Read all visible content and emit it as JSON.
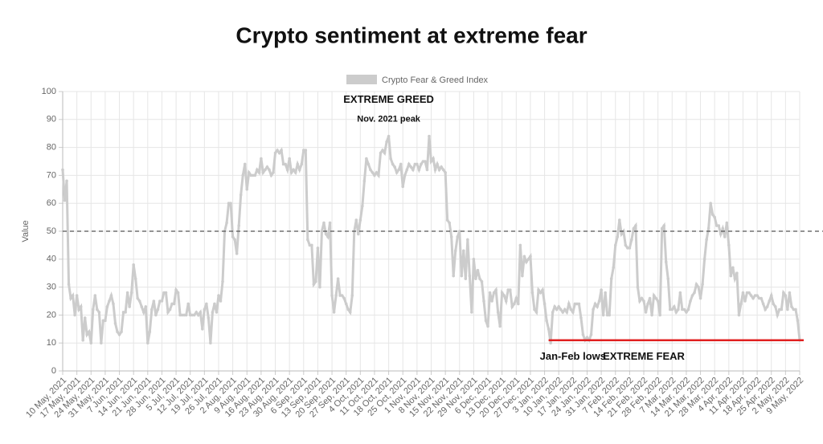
{
  "chart_data": {
    "type": "line",
    "title": "Crypto sentiment at extreme fear",
    "ylabel": "Value",
    "ylim": [
      0,
      100
    ],
    "yticks": [
      0,
      10,
      20,
      30,
      40,
      50,
      60,
      70,
      80,
      90,
      100
    ],
    "grid": true,
    "legend": "top",
    "reference_line": {
      "value": 50,
      "style": "dashed",
      "color": "#555555"
    },
    "threshold": {
      "value": 11,
      "color": "#e02020",
      "from": "3 Jan, 2022"
    },
    "annotations": [
      {
        "text": "EXTREME GREED",
        "x": "18 Oct, 2021",
        "y": 97
      },
      {
        "text": "Nov. 2021 peak",
        "x": "18 Oct, 2021",
        "y": 90
      },
      {
        "text": "Jan-Feb lows",
        "x": "17 Jan, 2022",
        "y": 5
      },
      {
        "text": "EXTREME FEAR",
        "x": "21 Feb, 2022",
        "y": 5
      }
    ],
    "categories": [
      "10 May, 2021",
      null,
      null,
      null,
      null,
      null,
      null,
      "17 May, 2021",
      null,
      null,
      null,
      null,
      null,
      null,
      "24 May, 2021",
      null,
      null,
      null,
      null,
      null,
      null,
      "31 May, 2021",
      null,
      null,
      null,
      null,
      null,
      null,
      "7 Jun, 2021",
      null,
      null,
      null,
      null,
      null,
      null,
      "14 Jun, 2021",
      null,
      null,
      null,
      null,
      null,
      null,
      "21 Jun, 2021",
      null,
      null,
      null,
      null,
      null,
      null,
      "28 Jun, 2021",
      null,
      null,
      null,
      null,
      null,
      null,
      "5 Jul, 2021",
      null,
      null,
      null,
      null,
      null,
      null,
      "12 Jul, 2021",
      null,
      null,
      null,
      null,
      null,
      null,
      "19 Jul, 2021",
      null,
      null,
      null,
      null,
      null,
      null,
      "26 Jul, 2021",
      null,
      null,
      null,
      null,
      null,
      null,
      "2 Aug, 2021",
      null,
      null,
      null,
      null,
      null,
      null,
      "9 Aug, 2021",
      null,
      null,
      null,
      null,
      null,
      null,
      "16 Aug, 2021",
      null,
      null,
      null,
      null,
      null,
      null,
      "23 Aug, 2021",
      null,
      null,
      null,
      null,
      null,
      null,
      "30 Aug, 2021",
      null,
      null,
      null,
      null,
      null,
      null,
      "6 Sep, 2021",
      null,
      null,
      null,
      null,
      null,
      null,
      "13 Sep, 2021",
      null,
      null,
      null,
      null,
      null,
      null,
      "20 Sep, 2021",
      null,
      null,
      null,
      null,
      null,
      null,
      "27 Sep, 2021",
      null,
      null,
      null,
      null,
      null,
      null,
      "4 Oct, 2021",
      null,
      null,
      null,
      null,
      null,
      null,
      "11 Oct, 2021",
      null,
      null,
      null,
      null,
      null,
      null,
      "18 Oct, 2021",
      null,
      null,
      null,
      null,
      null,
      null,
      "25 Oct, 2021",
      null,
      null,
      null,
      null,
      null,
      null,
      "1 Nov, 2021",
      null,
      null,
      null,
      null,
      null,
      null,
      "8 Nov, 2021",
      null,
      null,
      null,
      null,
      null,
      null,
      "15 Nov, 2021",
      null,
      null,
      null,
      null,
      null,
      null,
      "22 Nov, 2021",
      null,
      null,
      null,
      null,
      null,
      null,
      "29 Nov, 2021",
      null,
      null,
      null,
      null,
      null,
      null,
      "6 Dec, 2021",
      null,
      null,
      null,
      null,
      null,
      null,
      "13 Dec, 2021",
      null,
      null,
      null,
      null,
      null,
      null,
      "20 Dec, 2021",
      null,
      null,
      null,
      null,
      null,
      null,
      "27 Dec, 2021",
      null,
      null,
      null,
      null,
      null,
      null,
      "3 Jan, 2022",
      null,
      null,
      null,
      null,
      null,
      null,
      "10 Jan, 2022",
      null,
      null,
      null,
      null,
      null,
      null,
      "17 Jan, 2022",
      null,
      null,
      null,
      null,
      null,
      null,
      "24 Jan, 2022",
      null,
      null,
      null,
      null,
      null,
      null,
      "31 Jan, 2022",
      null,
      null,
      null,
      null,
      null,
      null,
      "7 Feb, 2022",
      null,
      null,
      null,
      null,
      null,
      null,
      "14 Feb, 2022",
      null,
      null,
      null,
      null,
      null,
      null,
      "21 Feb, 2022",
      null,
      null,
      null,
      null,
      null,
      null,
      "28 Feb, 2022",
      null,
      null,
      null,
      null,
      null,
      null,
      "7 Mar, 2022",
      null,
      null,
      null,
      null,
      null,
      null,
      "14 Mar, 2022",
      null,
      null,
      null,
      null,
      null,
      null,
      "21 Mar, 2022",
      null,
      null,
      null,
      null,
      null,
      null,
      "28 Mar, 2022",
      null,
      null,
      null,
      null,
      null,
      null,
      "4 Apr, 2022",
      null,
      null,
      null,
      null,
      null,
      null,
      "11 Apr, 2022",
      null,
      null,
      null,
      null,
      null,
      null,
      "18 Apr, 2022",
      null,
      null,
      null,
      null,
      null,
      null,
      "25 Apr, 2022",
      null,
      null,
      null,
      null,
      null,
      null,
      "2 May, 2022",
      null,
      null,
      null,
      null,
      null,
      null,
      "9 May, 2022"
    ],
    "series": [
      {
        "name": "Crypto Fear & Greed Index",
        "color": "#cccccc",
        "values": [
          72,
          61,
          68,
          31,
          26,
          27,
          20,
          27,
          22,
          23,
          11,
          19,
          13,
          14,
          10,
          22,
          27,
          22,
          21,
          10,
          18,
          18,
          23,
          25,
          27,
          24,
          17,
          14,
          13,
          14,
          21,
          21,
          28,
          23,
          28,
          38,
          33,
          26,
          25,
          23,
          21,
          23,
          10,
          14,
          22,
          25,
          20,
          22,
          25,
          25,
          28,
          28,
          21,
          22,
          24,
          24,
          29,
          28,
          20,
          20,
          20,
          20,
          24,
          20,
          20,
          20,
          21,
          20,
          21,
          15,
          22,
          24,
          19,
          10,
          21,
          24,
          21,
          27,
          25,
          32,
          50,
          53,
          60,
          60,
          48,
          47,
          42,
          52,
          63,
          70,
          74,
          65,
          71,
          70,
          70,
          70,
          72,
          71,
          76,
          71,
          72,
          73,
          72,
          70,
          71,
          78,
          79,
          78,
          79,
          74,
          74,
          72,
          76,
          71,
          72,
          71,
          74,
          72,
          74,
          79,
          79,
          47,
          45,
          45,
          31,
          32,
          44,
          30,
          50,
          53,
          49,
          48,
          53,
          27,
          21,
          27,
          33,
          27,
          27,
          26,
          24,
          22,
          21,
          27,
          50,
          54,
          49,
          54,
          59,
          68,
          76,
          74,
          72,
          71,
          70,
          71,
          70,
          78,
          79,
          78,
          82,
          84,
          76,
          74,
          73,
          71,
          72,
          74,
          66,
          70,
          72,
          74,
          73,
          72,
          74,
          74,
          72,
          74,
          75,
          75,
          72,
          84,
          75,
          76,
          72,
          74,
          72,
          73,
          72,
          71,
          54,
          53,
          48,
          34,
          43,
          48,
          50,
          34,
          43,
          33,
          47,
          34,
          21,
          40,
          33,
          36,
          33,
          32,
          25,
          18,
          16,
          28,
          25,
          28,
          29,
          21,
          16,
          28,
          27,
          25,
          29,
          29,
          23,
          24,
          26,
          24,
          45,
          34,
          41,
          39,
          40,
          41,
          28,
          22,
          21,
          29,
          28,
          29,
          24,
          18,
          15,
          10,
          21,
          23,
          22,
          23,
          22,
          21,
          22,
          21,
          24,
          22,
          21,
          24,
          24,
          24,
          19,
          13,
          11,
          12,
          11,
          13,
          22,
          24,
          23,
          25,
          29,
          20,
          28,
          20,
          20,
          33,
          37,
          45,
          48,
          54,
          49,
          50,
          45,
          44,
          44,
          47,
          51,
          52,
          30,
          25,
          26,
          25,
          21,
          24,
          26,
          20,
          27,
          26,
          25,
          20,
          51,
          52,
          39,
          33,
          22,
          22,
          23,
          21,
          22,
          28,
          22,
          22,
          21,
          22,
          25,
          27,
          28,
          31,
          30,
          26,
          31,
          40,
          47,
          51,
          60,
          56,
          55,
          52,
          52,
          49,
          51,
          48,
          53,
          45,
          34,
          37,
          33,
          35,
          20,
          24,
          28,
          25,
          28,
          28,
          27,
          26,
          27,
          27,
          26,
          26,
          24,
          22,
          23,
          25,
          27,
          24,
          23,
          20,
          22,
          22,
          28,
          27,
          22,
          28,
          23,
          22,
          22,
          18,
          11
        ]
      }
    ]
  }
}
